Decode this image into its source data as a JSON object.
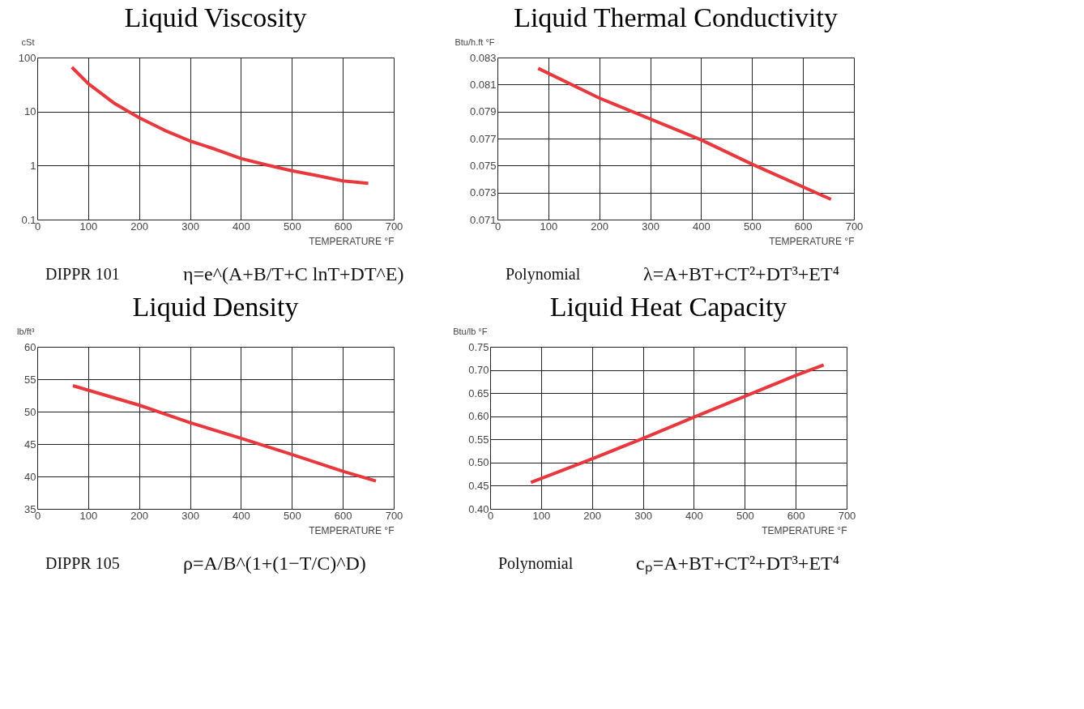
{
  "chart_data": [
    {
      "type": "line",
      "title": "Liquid Viscosity",
      "xlabel": "TEMPERATURE °F",
      "ylabel": "cSt",
      "log": "y",
      "grid": true,
      "x": [
        68,
        100,
        150,
        200,
        250,
        300,
        350,
        400,
        450,
        500,
        550,
        600,
        650
      ],
      "series": [
        {
          "color": "#e8383d",
          "values": [
            66,
            33,
            14.5,
            7.7,
            4.5,
            2.85,
            2.0,
            1.35,
            1.03,
            0.8,
            0.65,
            0.52,
            0.47
          ]
        }
      ],
      "xlim": [
        0,
        700
      ],
      "xticks": [
        0,
        100,
        200,
        300,
        400,
        500,
        600,
        700
      ],
      "ylim": [
        0.1,
        100
      ],
      "yticks": [
        0.1,
        1,
        10,
        100
      ],
      "annotations": [
        "DIPPR 101",
        "η=e^(A+B/T+C lnT+DT^E)"
      ]
    },
    {
      "type": "line",
      "title": "Liquid Thermal Conductivity",
      "xlabel": "TEMPERATURE °F",
      "ylabel": "Btu/h.ft °F",
      "grid": true,
      "x": [
        80,
        200,
        400,
        500,
        655
      ],
      "series": [
        {
          "color": "#e8383d",
          "values": [
            0.0822,
            0.08,
            0.0769,
            0.0751,
            0.0725
          ]
        }
      ],
      "xlim": [
        0,
        700
      ],
      "xticks": [
        0,
        100,
        200,
        300,
        400,
        500,
        600,
        700
      ],
      "ylim": [
        0.071,
        0.083
      ],
      "yticks": [
        0.071,
        0.073,
        0.075,
        0.077,
        0.079,
        0.081,
        0.083
      ],
      "annotations": [
        "Polynomial",
        "λ=A+BT+CT²+DT³+ET⁴"
      ]
    },
    {
      "type": "line",
      "title": "Liquid Density",
      "xlabel": "TEMPERATURE °F",
      "ylabel": "lb/ft³",
      "grid": true,
      "x": [
        70,
        200,
        300,
        400,
        500,
        600,
        665
      ],
      "series": [
        {
          "color": "#e8383d",
          "values": [
            54.0,
            51.0,
            48.3,
            45.9,
            43.4,
            40.8,
            39.3
          ]
        }
      ],
      "xlim": [
        0,
        700
      ],
      "xticks": [
        0,
        100,
        200,
        300,
        400,
        500,
        600,
        700
      ],
      "ylim": [
        35,
        60
      ],
      "yticks": [
        35,
        40,
        45,
        50,
        55,
        60
      ],
      "annotations": [
        "DIPPR 105",
        "ρ=A/B^(1+(1−T/C)^D)"
      ]
    },
    {
      "type": "line",
      "title": "Liquid Heat Capacity",
      "xlabel": "TEMPERATURE °F",
      "ylabel": "Btu/lb °F",
      "grid": true,
      "x": [
        80,
        200,
        300,
        400,
        500,
        600,
        655
      ],
      "series": [
        {
          "color": "#e8383d",
          "values": [
            0.457,
            0.508,
            0.552,
            0.598,
            0.643,
            0.688,
            0.711
          ]
        }
      ],
      "xlim": [
        0,
        700
      ],
      "xticks": [
        0,
        100,
        200,
        300,
        400,
        500,
        600,
        700
      ],
      "ylim": [
        0.4,
        0.75
      ],
      "yticks": [
        {
          "value": 0.4,
          "label": "0.40"
        },
        0.45,
        {
          "value": 0.5,
          "label": "0.50"
        },
        0.55,
        {
          "value": 0.6,
          "label": "0.60"
        },
        0.65,
        {
          "value": 0.7,
          "label": "0.70"
        },
        0.75
      ],
      "annotations": [
        "Polynomial",
        "cₚ=A+BT+CT²+DT³+ET⁴"
      ]
    }
  ]
}
